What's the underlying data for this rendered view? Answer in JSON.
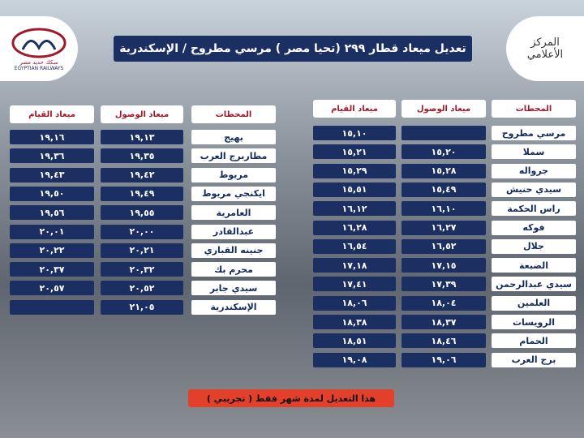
{
  "logo": {
    "arabic": "سكك حديد مصر",
    "english": "EGYPTIAN RAILWAYS"
  },
  "badge": {
    "line1": "المركز",
    "line2": "الأعلامي"
  },
  "title": "تعديل ميعاد قطار ٢٩٩ (تحيا مصر ) مرسي مطروح / الإسكندرية",
  "table_right": {
    "headers": [
      "المحطات",
      "ميعاد الوصول",
      "ميعاد القيام"
    ],
    "rows": [
      [
        "مرسي مطروح",
        null,
        "١٥,١٠"
      ],
      [
        "سملا",
        "١٥,٢٠",
        "١٥,٢١"
      ],
      [
        "جرواله",
        "١٥,٢٨",
        "١٥,٢٩"
      ],
      [
        "سيدي حنيش",
        "١٥,٤٩",
        "١٥,٥١"
      ],
      [
        "راس الحكمة",
        "١٦,١٠",
        "١٦,١٢"
      ],
      [
        "فوكه",
        "١٦,٢٧",
        "١٦,٢٨"
      ],
      [
        "جلال",
        "١٦,٥٢",
        "١٦,٥٤"
      ],
      [
        "الضبعة",
        "١٧,١٥",
        "١٧,١٨"
      ],
      [
        "سيدي عبدالرحمن",
        "١٧,٣٩",
        "١٧,٤١"
      ],
      [
        "العلمين",
        "١٨,٠٤",
        "١٨,٠٦"
      ],
      [
        "الرويسات",
        "١٨,٣٧",
        "١٨,٣٨"
      ],
      [
        "الحمام",
        "١٨,٤٦",
        "١٨,٥١"
      ],
      [
        "برج العرب",
        "١٩,٠٦",
        "١٩,٠٨"
      ]
    ]
  },
  "table_left": {
    "headers": [
      "المحطات",
      "ميعاد الوصول",
      "ميعاد القيام"
    ],
    "rows": [
      [
        "بهيج",
        "١٩,١٣",
        "١٩,١٦"
      ],
      [
        "مطاربرج العرب",
        "١٩,٣٥",
        "١٩,٣٦"
      ],
      [
        "مريوط",
        "١٩,٤٢",
        "١٩,٤٣"
      ],
      [
        "ايكنجي مريوط",
        "١٩,٤٩",
        "١٩,٥٠"
      ],
      [
        "العامرية",
        "١٩,٥٥",
        "١٩,٥٦"
      ],
      [
        "عبدالقادر",
        "٢٠,٠٠",
        "٢٠,٠١"
      ],
      [
        "جنينه القباري",
        "٢٠,٢١",
        "٢٠,٢٢"
      ],
      [
        "محرم بك",
        "٢٠,٣٢",
        "٢٠,٣٧"
      ],
      [
        "سيدي جابر",
        "٢٠,٥٢",
        "٢٠,٥٧"
      ],
      [
        "الإسكندرية",
        "٢١,٠٥",
        null
      ]
    ]
  },
  "footer": "هذا التعديل لمدة شهر فقط ( تجريبي )"
}
